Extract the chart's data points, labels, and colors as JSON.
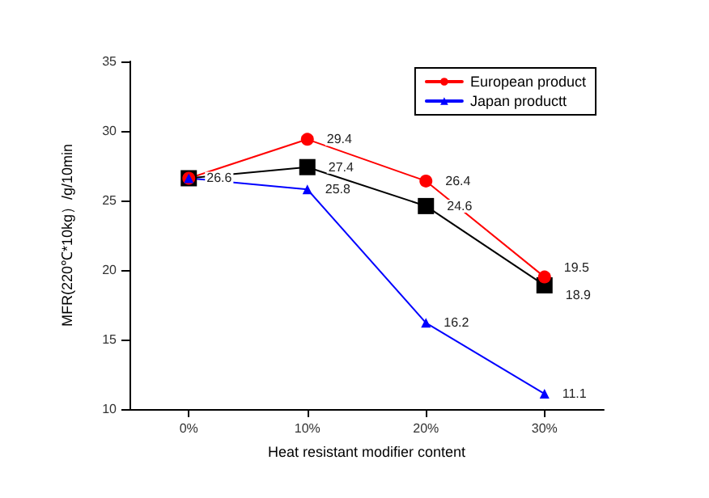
{
  "chart_data": {
    "type": "line",
    "xlabel": "Heat resistant modifier content",
    "ylabel": "MFR(220℃*10kg）/g/10min",
    "categories": [
      "0%",
      "10%",
      "20%",
      "30%"
    ],
    "ylim": [
      10,
      35
    ],
    "yticks": [
      10,
      15,
      20,
      25,
      30,
      35
    ],
    "grid": false,
    "legend": "top right",
    "series": [
      {
        "color": "#000000",
        "marker": "square",
        "values": [
          26.6,
          27.4,
          24.6,
          18.9
        ],
        "value_labels": [
          null,
          "27.4",
          "24.6",
          "18.9"
        ]
      },
      {
        "name": "European product",
        "color": "#ff0000",
        "marker": "circle",
        "values": [
          26.6,
          29.4,
          26.4,
          19.5
        ],
        "value_labels": [
          null,
          "29.4",
          "26.4",
          "19.5"
        ]
      },
      {
        "name": "Japan productt",
        "color": "#0000ff",
        "marker": "triangle",
        "values": [
          26.6,
          25.8,
          16.2,
          11.1
        ],
        "value_labels": [
          "26.6",
          "25.8",
          "16.2",
          "11.1"
        ]
      }
    ]
  }
}
